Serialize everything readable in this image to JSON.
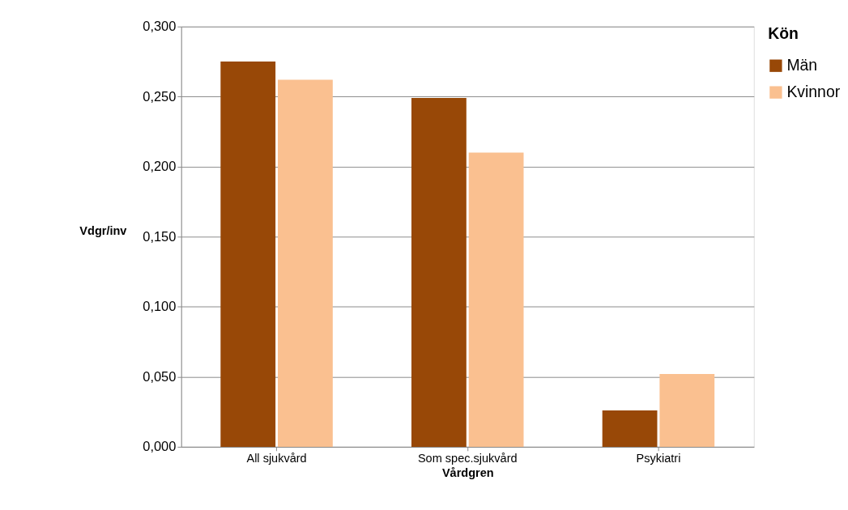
{
  "chart_data": {
    "type": "bar",
    "xlabel": "Vårdgren",
    "ylabel": "Vdgr/inv",
    "legend_title": "Kön",
    "categories": [
      "All sjukvård",
      "Som spec.sjukvård",
      "Psykiatri"
    ],
    "series": [
      {
        "name": "Män",
        "color": "#984807",
        "values": [
          0.275,
          0.249,
          0.026
        ]
      },
      {
        "name": "Kvinnor",
        "color": "#fac090",
        "values": [
          0.262,
          0.21,
          0.052
        ]
      }
    ],
    "ylim": [
      0,
      0.3
    ],
    "yticks": [
      {
        "value": 0,
        "label": "0,000"
      },
      {
        "value": 0.05,
        "label": "0,050"
      },
      {
        "value": 0.1,
        "label": "0,100"
      },
      {
        "value": 0.15,
        "label": "0,150"
      },
      {
        "value": 0.2,
        "label": "0,200"
      },
      {
        "value": 0.25,
        "label": "0,250"
      },
      {
        "value": 0.3,
        "label": "0,300"
      }
    ],
    "grid": "y",
    "legend": "right"
  }
}
